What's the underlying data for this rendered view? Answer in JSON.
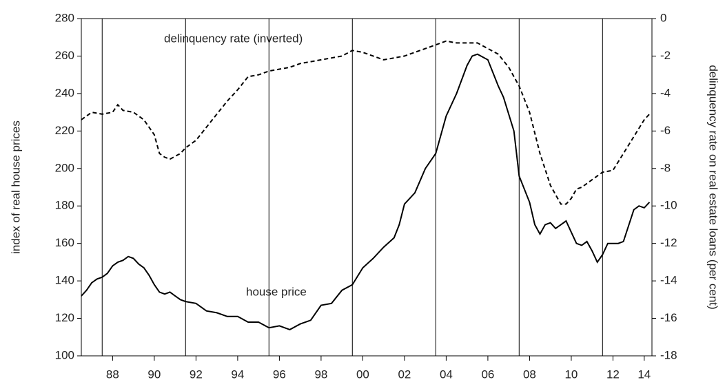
{
  "chart_data": {
    "type": "line",
    "ylabel": "index of real house prices",
    "y2label": "delinquency rate on real estate loans (per cent)",
    "annotations": [
      "delinquency rate (inverted)",
      "house price"
    ],
    "xlim": [
      1987,
      2014.37
    ],
    "xticks": [
      {
        "value": 1988.5,
        "label": "88"
      },
      {
        "value": 1990.5,
        "label": "90"
      },
      {
        "value": 1992.5,
        "label": "92"
      },
      {
        "value": 1994.5,
        "label": "94"
      },
      {
        "value": 1996.5,
        "label": "96"
      },
      {
        "value": 1998.5,
        "label": "98"
      },
      {
        "value": 2000.5,
        "label": "00"
      },
      {
        "value": 2002.5,
        "label": "02"
      },
      {
        "value": 2004.5,
        "label": "04"
      },
      {
        "value": 2006.5,
        "label": "06"
      },
      {
        "value": 2008.5,
        "label": "08"
      },
      {
        "value": 2010.5,
        "label": "10"
      },
      {
        "value": 2012.5,
        "label": "12"
      },
      {
        "value": 2014.0,
        "label": "14"
      }
    ],
    "ylim": [
      100,
      280
    ],
    "yticks": [
      100,
      120,
      140,
      160,
      180,
      200,
      220,
      240,
      260,
      280
    ],
    "y2lim": [
      -18,
      0
    ],
    "y2ticks": [
      -18,
      -16,
      -14,
      -12,
      -10,
      -8,
      -6,
      -4,
      -2,
      0
    ],
    "vlines": [
      1988,
      1992,
      1996,
      2000,
      2004,
      2008,
      2012
    ],
    "series": [
      {
        "color": "#000000",
        "dashed": false,
        "x": [
          1987.0,
          1987.25,
          1987.5,
          1987.75,
          1988.0,
          1988.25,
          1988.5,
          1988.75,
          1989.0,
          1989.25,
          1989.5,
          1989.75,
          1990.0,
          1990.25,
          1990.5,
          1990.75,
          1991.0,
          1991.25,
          1991.5,
          1991.75,
          1992.0,
          1992.5,
          1993.0,
          1993.5,
          1994.0,
          1994.5,
          1995.0,
          1995.5,
          1996.0,
          1996.5,
          1997.0,
          1997.5,
          1998.0,
          1998.5,
          1999.0,
          1999.5,
          2000.0,
          2000.5,
          2001.0,
          2001.5,
          2002.0,
          2002.25,
          2002.5,
          2003.0,
          2003.5,
          2004.0,
          2004.5,
          2005.0,
          2005.5,
          2005.75,
          2006.0,
          2006.5,
          2007.0,
          2007.25,
          2007.75,
          2008.0,
          2008.5,
          2008.75,
          2009.0,
          2009.25,
          2009.5,
          2009.75,
          2010.25,
          2010.5,
          2010.75,
          2011.0,
          2011.25,
          2011.5,
          2011.75,
          2012.0,
          2012.25,
          2012.75,
          2013.0,
          2013.5,
          2013.75,
          2014.0,
          2014.25
        ],
        "values": [
          132,
          135,
          139,
          141,
          142,
          144,
          148,
          150,
          151,
          153,
          152,
          149,
          147,
          143,
          138,
          134,
          133,
          134,
          132,
          130,
          129,
          128,
          124,
          123,
          121,
          121,
          118,
          118,
          115,
          116,
          114,
          117,
          119,
          127,
          128,
          135,
          138,
          147,
          152,
          158,
          163,
          170,
          181,
          187,
          200,
          208,
          228,
          240,
          255,
          260,
          261,
          258,
          244,
          238,
          220,
          196,
          182,
          170,
          165,
          170,
          171,
          168,
          172,
          166,
          160,
          159,
          161,
          156,
          150,
          154,
          160,
          160,
          161,
          178,
          180,
          179,
          182
        ]
      },
      {
        "color": "#000000",
        "dashed": true,
        "axis": "y2",
        "x": [
          1987.0,
          1987.5,
          1988.0,
          1988.5,
          1988.75,
          1989.0,
          1989.5,
          1990.0,
          1990.5,
          1990.75,
          1991.0,
          1991.25,
          1991.75,
          1992.0,
          1992.5,
          1993.0,
          1993.5,
          1994.0,
          1994.5,
          1995.0,
          1995.5,
          1996.0,
          1996.5,
          1997.0,
          1997.5,
          1998.0,
          1998.5,
          1999.0,
          1999.5,
          2000.0,
          2000.5,
          2001.0,
          2001.5,
          2002.0,
          2002.5,
          2003.0,
          2003.5,
          2004.0,
          2004.5,
          2005.0,
          2005.5,
          2006.0,
          2006.5,
          2007.0,
          2007.5,
          2008.0,
          2008.5,
          2009.0,
          2009.5,
          2010.0,
          2010.25,
          2010.5,
          2010.75,
          2011.0,
          2011.5,
          2012.0,
          2012.5,
          2013.0,
          2013.5,
          2014.0,
          2014.25
        ],
        "values": [
          -5.4,
          -5.0,
          -5.1,
          -5.0,
          -4.6,
          -4.9,
          -5.0,
          -5.4,
          -6.2,
          -7.2,
          -7.4,
          -7.5,
          -7.2,
          -6.9,
          -6.5,
          -5.8,
          -5.1,
          -4.4,
          -3.8,
          -3.1,
          -3.0,
          -2.8,
          -2.7,
          -2.6,
          -2.4,
          -2.3,
          -2.2,
          -2.1,
          -2.0,
          -1.7,
          -1.8,
          -2.0,
          -2.2,
          -2.1,
          -2.0,
          -1.8,
          -1.6,
          -1.4,
          -1.2,
          -1.3,
          -1.3,
          -1.3,
          -1.6,
          -1.9,
          -2.6,
          -3.6,
          -5.0,
          -7.2,
          -8.9,
          -9.9,
          -9.9,
          -9.6,
          -9.1,
          -9.0,
          -8.6,
          -8.2,
          -8.1,
          -7.2,
          -6.3,
          -5.4,
          -5.1
        ]
      }
    ]
  }
}
